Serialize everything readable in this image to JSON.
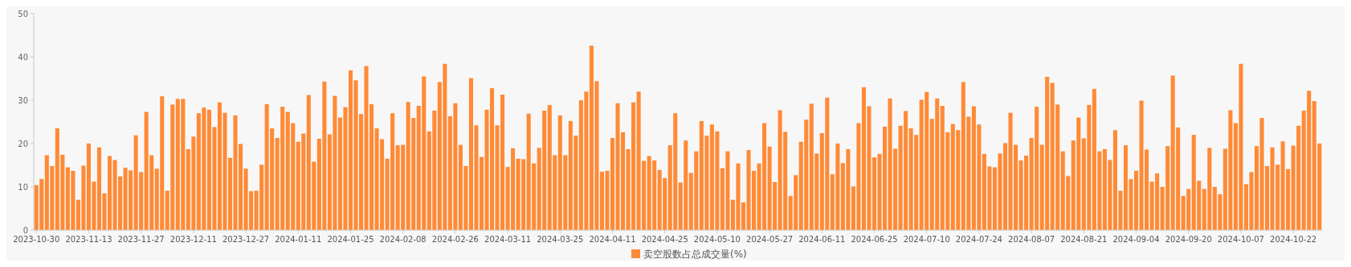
{
  "chart_data": {
    "type": "bar",
    "categories": [
      "2023-10-30",
      null,
      null,
      null,
      null,
      null,
      null,
      null,
      null,
      null,
      "2023-11-13",
      null,
      null,
      null,
      null,
      null,
      null,
      null,
      null,
      null,
      "2023-11-27",
      null,
      null,
      null,
      null,
      null,
      null,
      null,
      null,
      null,
      "2023-12-11",
      null,
      null,
      null,
      null,
      null,
      null,
      null,
      null,
      null,
      "2023-12-27",
      null,
      null,
      null,
      null,
      null,
      null,
      null,
      null,
      null,
      "2024-01-11",
      null,
      null,
      null,
      null,
      null,
      null,
      null,
      null,
      null,
      "2024-01-25",
      null,
      null,
      null,
      null,
      null,
      null,
      null,
      null,
      null,
      "2024-02-08",
      null,
      null,
      null,
      null,
      null,
      null,
      null,
      null,
      null,
      "2024-02-26",
      null,
      null,
      null,
      null,
      null,
      null,
      null,
      null,
      null,
      "2024-03-11",
      null,
      null,
      null,
      null,
      null,
      null,
      null,
      null,
      null,
      "2024-03-25",
      null,
      null,
      null,
      null,
      null,
      null,
      null,
      null,
      null,
      "2024-04-11",
      null,
      null,
      null,
      null,
      null,
      null,
      null,
      null,
      null,
      "2024-04-25",
      null,
      null,
      null,
      null,
      null,
      null,
      null,
      null,
      null,
      "2024-05-10",
      null,
      null,
      null,
      null,
      null,
      null,
      null,
      null,
      null,
      "2024-05-27",
      null,
      null,
      null,
      null,
      null,
      null,
      null,
      null,
      null,
      "2024-06-11",
      null,
      null,
      null,
      null,
      null,
      null,
      null,
      null,
      null,
      "2024-06-25",
      null,
      null,
      null,
      null,
      null,
      null,
      null,
      null,
      null,
      "2024-07-10",
      null,
      null,
      null,
      null,
      null,
      null,
      null,
      null,
      null,
      "2024-07-24",
      null,
      null,
      null,
      null,
      null,
      null,
      null,
      null,
      null,
      "2024-08-07",
      null,
      null,
      null,
      null,
      null,
      null,
      null,
      null,
      null,
      "2024-08-21",
      null,
      null,
      null,
      null,
      null,
      null,
      null,
      null,
      null,
      "2024-09-04",
      null,
      null,
      null,
      null,
      null,
      null,
      null,
      null,
      null,
      "2024-09-20",
      null,
      null,
      null,
      null,
      null,
      null,
      null,
      null,
      null,
      "2024-10-07",
      null,
      null,
      null,
      null,
      null,
      null,
      null,
      null,
      null,
      "2024-10-22",
      null,
      null,
      null,
      null,
      null
    ],
    "series": [
      {
        "name": "卖空股数占总成交量(%)",
        "color": "#ff8a36",
        "values": [
          10.4,
          11.8,
          17.3,
          14.8,
          23.5,
          17.4,
          14.5,
          13.7,
          7.0,
          14.9,
          20.0,
          11.2,
          19.1,
          8.5,
          17.1,
          16.2,
          12.4,
          14.4,
          13.8,
          21.9,
          13.4,
          27.3,
          17.3,
          14.2,
          30.9,
          9.1,
          29.0,
          30.3,
          30.3,
          18.7,
          21.6,
          27.0,
          28.3,
          27.8,
          23.8,
          29.5,
          27.1,
          16.7,
          26.5,
          19.9,
          14.2,
          9.0,
          9.1,
          15.1,
          29.1,
          23.5,
          21.3,
          28.5,
          27.3,
          24.7,
          20.4,
          22.3,
          31.2,
          15.8,
          21.1,
          34.3,
          22.1,
          31.0,
          26.0,
          28.4,
          36.9,
          34.6,
          26.8,
          37.9,
          29.1,
          23.5,
          21.0,
          16.5,
          27.0,
          19.6,
          19.7,
          29.6,
          25.9,
          28.7,
          35.5,
          22.8,
          27.6,
          34.2,
          38.4,
          26.3,
          29.3,
          19.7,
          14.8,
          35.1,
          24.2,
          16.9,
          27.8,
          32.8,
          24.2,
          31.3,
          14.6,
          18.9,
          16.5,
          16.4,
          26.9,
          15.4,
          19.0,
          27.6,
          28.9,
          17.3,
          26.5,
          17.3,
          25.2,
          21.8,
          30.0,
          32.0,
          42.6,
          34.4,
          13.5,
          13.7,
          21.3,
          29.3,
          22.6,
          18.7,
          29.5,
          32.0,
          16.0,
          17.1,
          16.1,
          13.9,
          12.0,
          19.6,
          27.0,
          11.0,
          20.7,
          13.2,
          18.2,
          25.2,
          21.8,
          24.4,
          22.8,
          14.3,
          18.2,
          7.0,
          15.4,
          6.4,
          18.5,
          13.7,
          15.4,
          24.7,
          19.3,
          11.1,
          27.7,
          22.7,
          7.9,
          12.7,
          20.4,
          25.5,
          29.2,
          17.7,
          22.4,
          30.6,
          12.9,
          20.0,
          15.5,
          18.7,
          10.1,
          24.7,
          33.0,
          28.6,
          16.8,
          17.6,
          23.9,
          30.4,
          18.8,
          24.1,
          27.5,
          23.5,
          22.0,
          30.1,
          31.9,
          25.7,
          30.4,
          28.7,
          22.6,
          24.5,
          23.1,
          34.2,
          26.2,
          28.6,
          24.4,
          17.6,
          14.7,
          14.5,
          17.7,
          20.1,
          27.1,
          19.7,
          16.1,
          17.2,
          21.3,
          28.5,
          19.7,
          35.4,
          34.0,
          29.0,
          18.2,
          12.5,
          20.7,
          26.0,
          21.2,
          28.9,
          32.6,
          18.2,
          18.7,
          16.2,
          23.1,
          9.1,
          19.6,
          11.8,
          13.7,
          29.9,
          18.6,
          11.2,
          13.1,
          10.0,
          19.4,
          35.7,
          23.7,
          7.9,
          9.5,
          22.0,
          11.4,
          9.5,
          19.0,
          10.0,
          8.3,
          18.8,
          27.7,
          24.7,
          38.4,
          10.6,
          13.4,
          19.4,
          25.9,
          14.8,
          19.1,
          15.1,
          20.5,
          14.1,
          19.5,
          24.1,
          27.6,
          32.2,
          29.8,
          20.0
        ]
      }
    ],
    "ylim": [
      0,
      50
    ],
    "yticks": [
      0,
      10,
      20,
      30,
      40,
      50
    ],
    "grid": false,
    "legend": "bottom"
  }
}
